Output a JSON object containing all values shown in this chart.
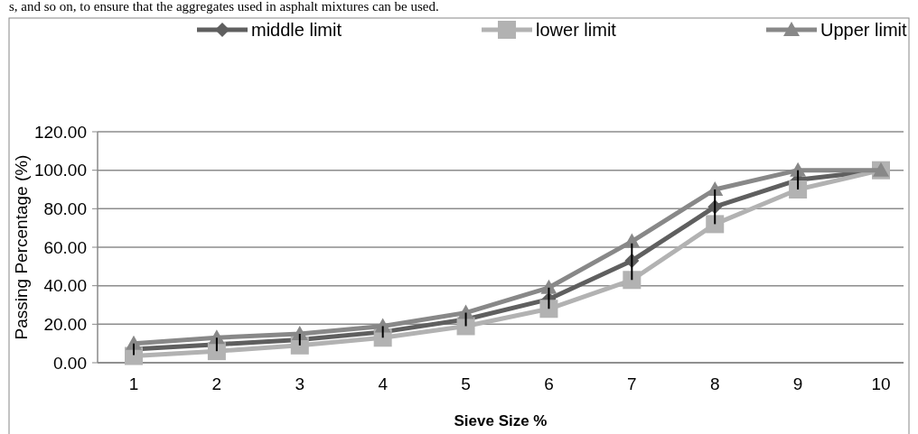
{
  "chart_data": {
    "type": "line",
    "xlabel": "Sieve Size %",
    "ylabel": "Passing  Percentage (%)",
    "annotations": [
      "s, and so on, to ensure that the aggregates used in asphalt mixtures can be used."
    ],
    "categories": [
      "1",
      "2",
      "3",
      "4",
      "5",
      "6",
      "7",
      "8",
      "9",
      "10"
    ],
    "ylim": [
      0,
      120
    ],
    "yticks": [
      {
        "value": 0,
        "label": "0.00"
      },
      {
        "value": 20,
        "label": "20.00"
      },
      {
        "value": 40,
        "label": "40.00"
      },
      {
        "value": 60,
        "label": "60.00"
      },
      {
        "value": 80,
        "label": "80.00"
      },
      {
        "value": 100,
        "label": "100.00"
      },
      {
        "value": 120,
        "label": "120.00"
      }
    ],
    "grid": "y",
    "legend": "top",
    "line_style": "solid",
    "series": [
      {
        "name": "middle limit",
        "color": "#5f5f5f",
        "marker": "diamond",
        "values": [
          7,
          9.5,
          12,
          16,
          22.5,
          33,
          53,
          81,
          95,
          100
        ],
        "errors": [
          [
            4,
            10
          ],
          [
            6,
            13
          ],
          [
            9,
            15
          ],
          [
            13,
            19
          ],
          [
            19,
            26
          ],
          [
            28,
            39
          ],
          [
            43,
            62
          ],
          [
            72,
            90
          ],
          [
            90,
            100
          ],
          null
        ]
      },
      {
        "name": "lower limit",
        "color": "#b2b2b2",
        "marker": "square",
        "values": [
          3.5,
          6,
          9,
          13,
          19,
          28,
          43,
          72,
          90,
          100
        ]
      },
      {
        "name": "Upper limit",
        "color": "#888888",
        "marker": "triangle",
        "values": [
          10,
          13,
          15,
          19,
          26,
          39,
          63,
          90,
          100,
          100
        ]
      }
    ]
  }
}
